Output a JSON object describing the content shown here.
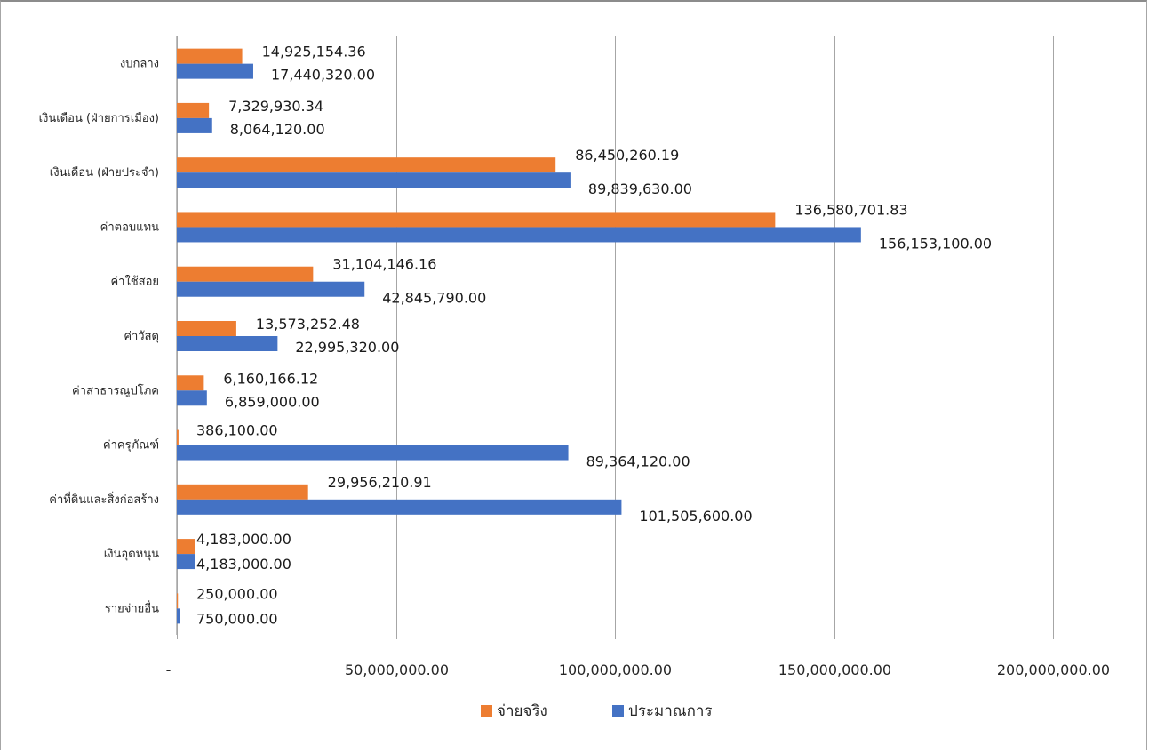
{
  "chart_data": {
    "type": "bar",
    "orientation": "horizontal",
    "categories": [
      "งบกลาง",
      "เงินเดือน (ฝ่ายการเมือง)",
      "เงินเดือน (ฝ่ายประจำ)",
      "ค่าตอบแทน",
      "ค่าใช้สอย",
      "ค่าวัสดุ",
      "ค่าสาธารณูปโภค",
      "ค่าครุภัณฑ์",
      "ค่าที่ดินและสิ่งก่อสร้าง",
      "เงินอุดหนุน",
      "รายจ่ายอื่น"
    ],
    "series": [
      {
        "name": "จ่ายจริง",
        "color": "#ED7D31",
        "values": [
          14925154.36,
          7329930.34,
          86450260.19,
          136580701.83,
          31104146.16,
          13573252.48,
          6160166.12,
          386100.0,
          29956210.91,
          4183000.0,
          250000.0
        ],
        "labels": [
          "14,925,154.36",
          "7,329,930.34",
          "86,450,260.19",
          "136,580,701.83",
          "31,104,146.16",
          "13,573,252.48",
          "6,160,166.12",
          "386,100.00",
          "29,956,210.91",
          "4,183,000.00",
          "250,000.00"
        ]
      },
      {
        "name": "ประมาณการ",
        "color": "#4472C4",
        "values": [
          17440320.0,
          8064120.0,
          89839630.0,
          156153100.0,
          42845790.0,
          22995320.0,
          6859000.0,
          89364120.0,
          101505600.0,
          4183000.0,
          750000.0
        ],
        "labels": [
          "17,440,320.00",
          "8,064,120.00",
          "89,839,630.00",
          "156,153,100.00",
          "42,845,790.00",
          "22,995,320.00",
          "6,859,000.00",
          "89,364,120.00",
          "101,505,600.00",
          "4,183,000.00",
          "750,000.00"
        ]
      }
    ],
    "xlim": [
      0,
      200000000
    ],
    "x_ticks": [
      {
        "value": 0,
        "label": "-"
      },
      {
        "value": 50000000,
        "label": "50,000,000.00"
      },
      {
        "value": 100000000,
        "label": "100,000,000.00"
      },
      {
        "value": 150000000,
        "label": "150,000,000.00"
      },
      {
        "value": 200000000,
        "label": "200,000,000.00"
      }
    ],
    "grid": "vertical",
    "legend_position": "bottom",
    "title": "",
    "xlabel": "",
    "ylabel": ""
  }
}
